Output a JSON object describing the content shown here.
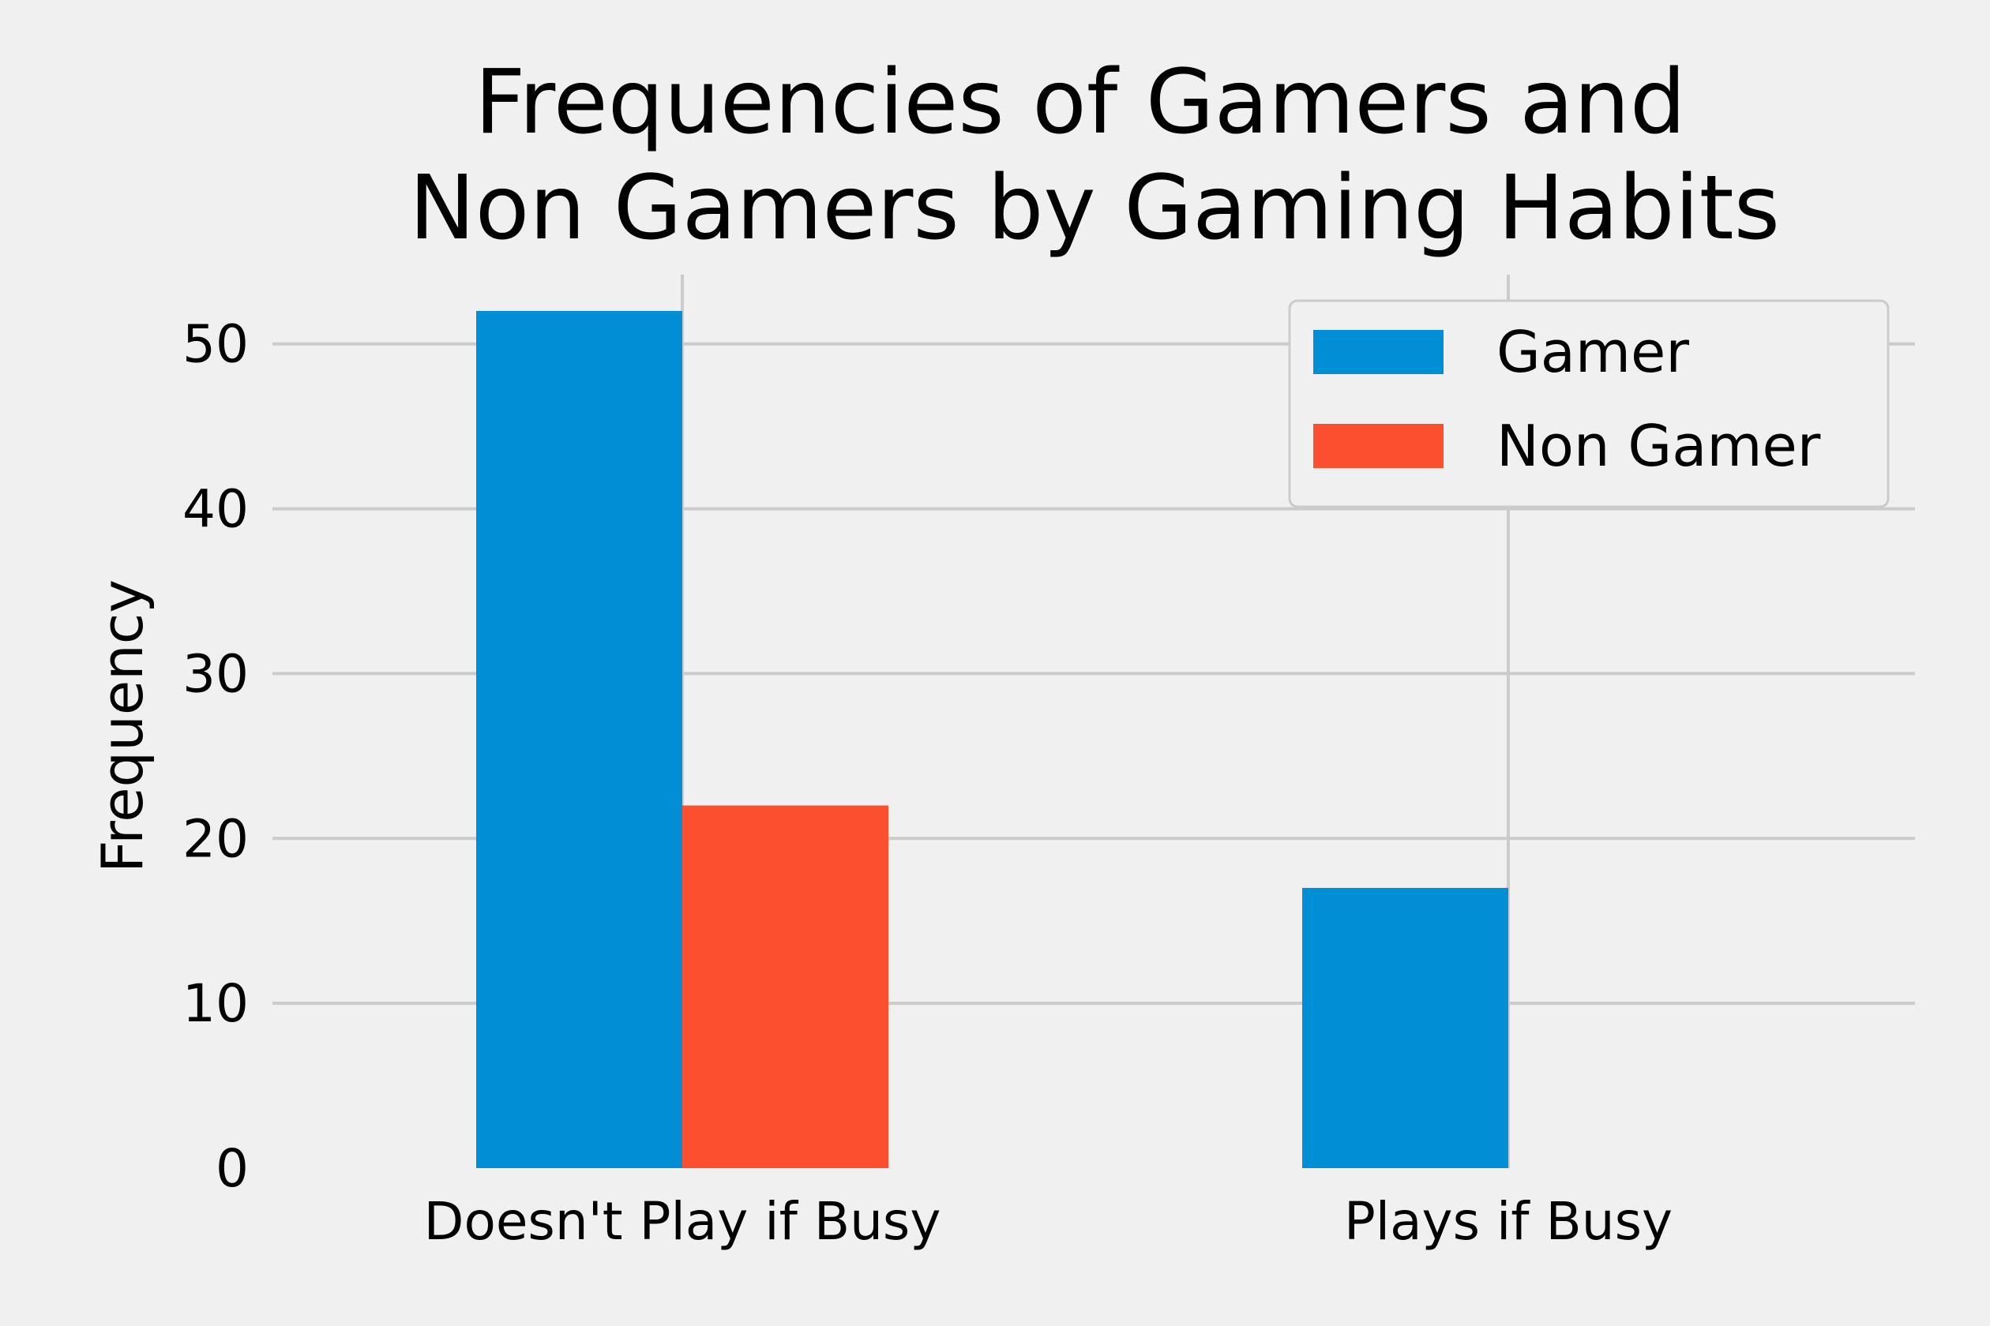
{
  "chart_data": {
    "type": "bar",
    "title": [
      "Frequencies of Gamers and",
      "Non Gamers by Gaming Habits"
    ],
    "xlabel": "",
    "ylabel": "Frequency",
    "categories": [
      "Doesn't Play if Busy",
      "Plays if Busy"
    ],
    "series": [
      {
        "name": "Gamer",
        "values": [
          52,
          17
        ],
        "color": "#008fd5"
      },
      {
        "name": "Non Gamer",
        "values": [
          22,
          0
        ],
        "color": "#fc4f30"
      }
    ],
    "ylim": [
      0,
      54.2
    ],
    "yticks": [
      0,
      10,
      20,
      30,
      40,
      50
    ],
    "grid": true,
    "legend_position": "top-right",
    "background": "#f0f0f0",
    "grid_color": "#cbcbcb"
  }
}
